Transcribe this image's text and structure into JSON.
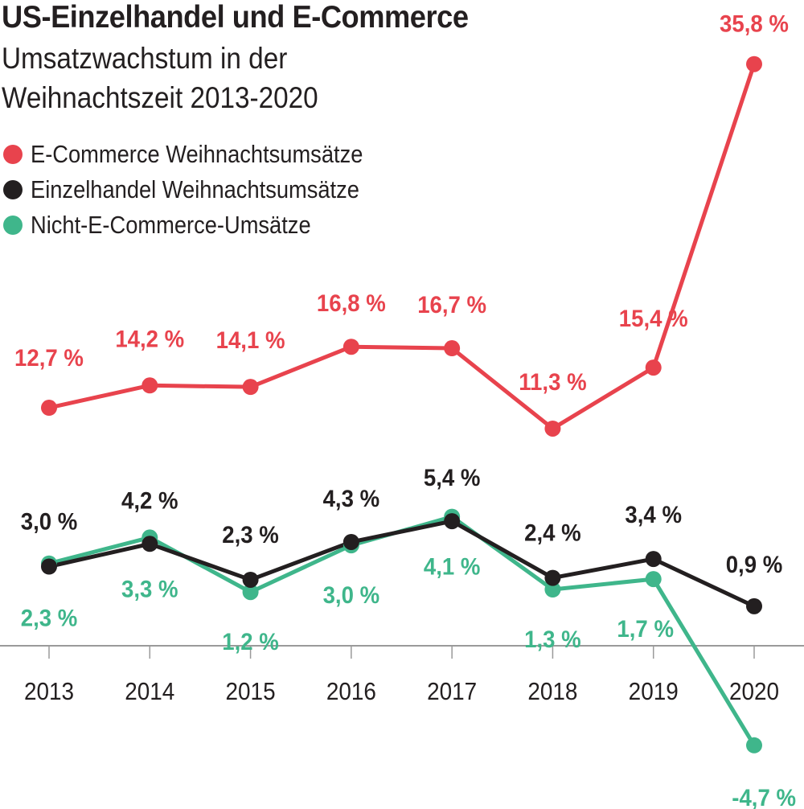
{
  "chart_data": {
    "type": "line",
    "title": "US-Einzelhandel und E-Commerce",
    "subtitle_lines": [
      "Umsatzwachstum in der",
      "Weihnachtszeit 2013-2020"
    ],
    "xlabel": "",
    "ylabel": "",
    "x": [
      "2013",
      "2014",
      "2015",
      "2016",
      "2017",
      "2018",
      "2019",
      "2020"
    ],
    "grid": false,
    "legend_position": "top-left",
    "series": [
      {
        "name": "E-Commerce Weihnachtsumsätze",
        "color": "#e8434d",
        "values": [
          12.7,
          14.2,
          14.1,
          16.8,
          16.7,
          11.3,
          15.4,
          35.8
        ],
        "labels": [
          "12,7 %",
          "14,2 %",
          "14,1 %",
          "16,8 %",
          "16,7 %",
          "11,3 %",
          "15,4 %",
          "35,8 %"
        ]
      },
      {
        "name": "Einzelhandel Weihnachtsumsätze",
        "color": "#231f20",
        "values": [
          3.0,
          4.2,
          2.3,
          4.3,
          5.4,
          2.4,
          3.4,
          0.9
        ],
        "labels": [
          "3,0 %",
          "4,2 %",
          "2,3 %",
          "4,3 %",
          "5,4 %",
          "2,4 %",
          "3,4 %",
          "0,9 %"
        ]
      },
      {
        "name": "Nicht-E-Commerce-Umsätze",
        "color": "#3fb68b",
        "values": [
          2.3,
          3.3,
          1.2,
          3.0,
          4.1,
          1.3,
          1.7,
          -4.7
        ],
        "labels": [
          "2,3 %",
          "3,3 %",
          "1,2 %",
          "3,0 %",
          "4,1 %",
          "1,3 %",
          "1,7 %",
          "-4,7 %"
        ]
      }
    ]
  }
}
